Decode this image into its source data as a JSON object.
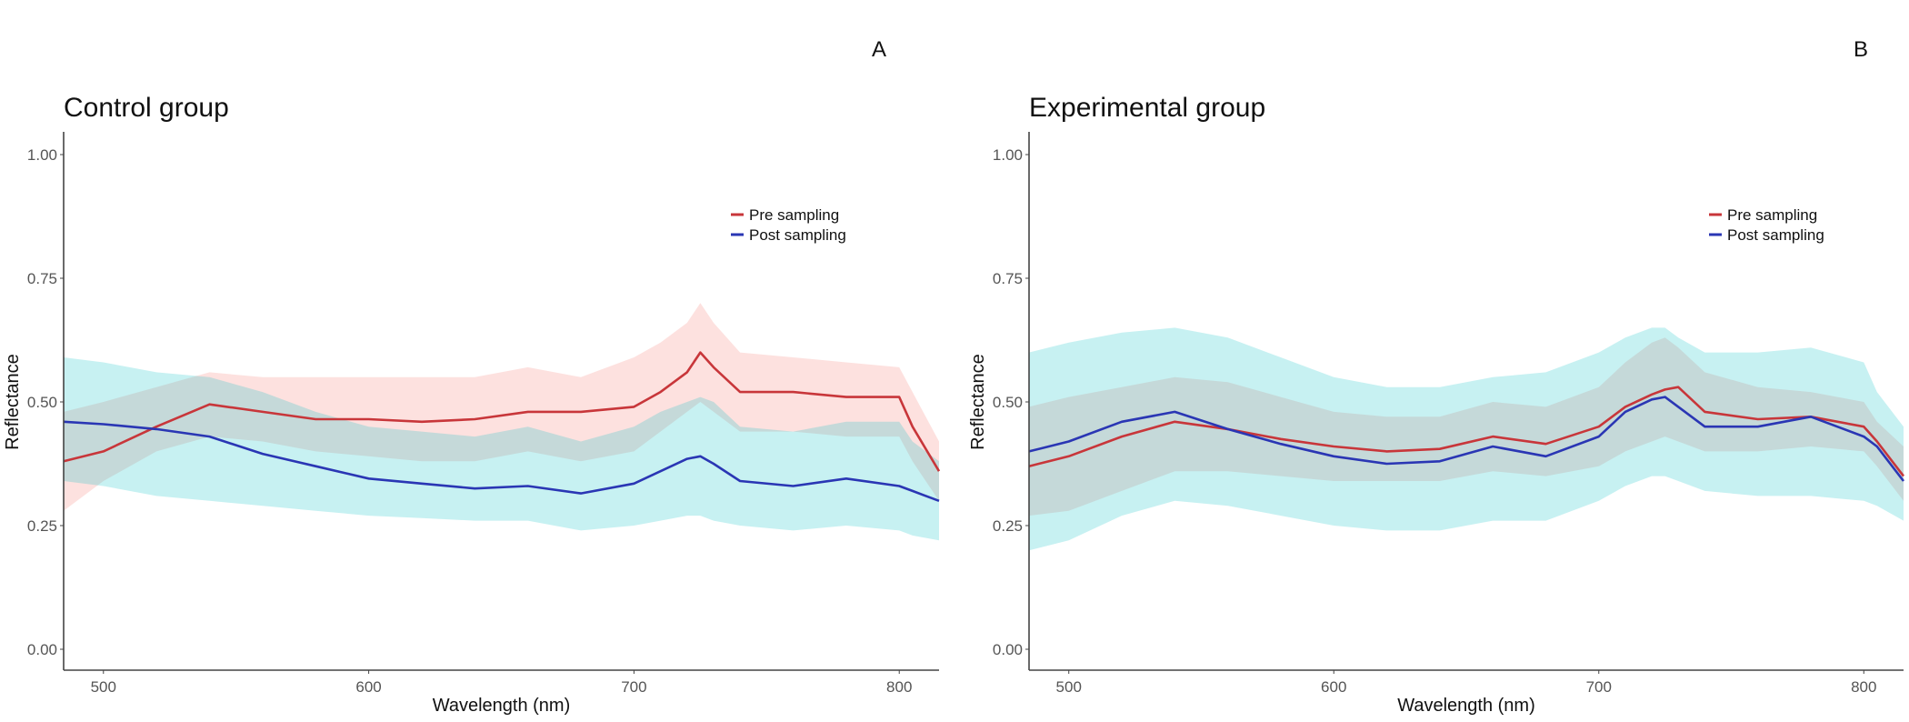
{
  "chart_data": [
    {
      "type": "line",
      "panel_letter": "A",
      "title": "Control group",
      "xlabel": "Wavelength (nm)",
      "ylabel": "Reflectance",
      "xlim": [
        485,
        815
      ],
      "ylim": [
        -0.04,
        1.04
      ],
      "xticks": [
        500,
        600,
        700,
        800
      ],
      "yticks": [
        0.0,
        0.25,
        0.5,
        0.75,
        1.0
      ],
      "ytick_labels": [
        "0.00",
        "0.25",
        "0.50",
        "0.75",
        "1.00"
      ],
      "legend_position": "top-right",
      "x": [
        485,
        500,
        520,
        540,
        560,
        580,
        600,
        620,
        640,
        660,
        680,
        700,
        710,
        720,
        725,
        730,
        740,
        760,
        780,
        800,
        805,
        815
      ],
      "series": [
        {
          "name": "Pre sampling",
          "color": "#c8363a",
          "band_color": "#F8766D",
          "mean": [
            0.38,
            0.4,
            0.45,
            0.495,
            0.48,
            0.465,
            0.465,
            0.46,
            0.465,
            0.48,
            0.48,
            0.49,
            0.52,
            0.56,
            0.6,
            0.57,
            0.52,
            0.52,
            0.51,
            0.51,
            0.45,
            0.36
          ],
          "lower": [
            0.28,
            0.34,
            0.4,
            0.43,
            0.42,
            0.4,
            0.39,
            0.38,
            0.38,
            0.4,
            0.38,
            0.4,
            0.44,
            0.48,
            0.5,
            0.48,
            0.44,
            0.44,
            0.43,
            0.43,
            0.38,
            0.3
          ],
          "upper": [
            0.48,
            0.5,
            0.53,
            0.56,
            0.55,
            0.55,
            0.55,
            0.55,
            0.55,
            0.57,
            0.55,
            0.59,
            0.62,
            0.66,
            0.7,
            0.66,
            0.6,
            0.59,
            0.58,
            0.57,
            0.52,
            0.42
          ]
        },
        {
          "name": "Post sampling",
          "color": "#2a36b4",
          "band_color": "#00BFC4",
          "mean": [
            0.46,
            0.455,
            0.445,
            0.43,
            0.395,
            0.37,
            0.345,
            0.335,
            0.325,
            0.33,
            0.315,
            0.335,
            0.36,
            0.385,
            0.39,
            0.375,
            0.34,
            0.33,
            0.345,
            0.33,
            0.32,
            0.3
          ],
          "lower": [
            0.34,
            0.33,
            0.31,
            0.3,
            0.29,
            0.28,
            0.27,
            0.265,
            0.26,
            0.26,
            0.24,
            0.25,
            0.26,
            0.27,
            0.27,
            0.26,
            0.25,
            0.24,
            0.25,
            0.24,
            0.23,
            0.22
          ],
          "upper": [
            0.59,
            0.58,
            0.56,
            0.55,
            0.52,
            0.48,
            0.45,
            0.44,
            0.43,
            0.45,
            0.42,
            0.45,
            0.48,
            0.5,
            0.51,
            0.5,
            0.45,
            0.44,
            0.46,
            0.46,
            0.42,
            0.38
          ]
        }
      ]
    },
    {
      "type": "line",
      "panel_letter": "B",
      "title": "Experimental group",
      "xlabel": "Wavelength (nm)",
      "ylabel": "Reflectance",
      "xlim": [
        485,
        815
      ],
      "ylim": [
        -0.04,
        1.04
      ],
      "xticks": [
        500,
        600,
        700,
        800
      ],
      "yticks": [
        0.0,
        0.25,
        0.5,
        0.75,
        1.0
      ],
      "ytick_labels": [
        "0.00",
        "0.25",
        "0.50",
        "0.75",
        "1.00"
      ],
      "legend_position": "top-right",
      "x": [
        485,
        500,
        520,
        540,
        560,
        580,
        600,
        620,
        640,
        660,
        680,
        700,
        710,
        720,
        725,
        730,
        740,
        760,
        780,
        800,
        805,
        815
      ],
      "series": [
        {
          "name": "Pre sampling",
          "color": "#c8363a",
          "band_color": "#F8766D",
          "mean": [
            0.37,
            0.39,
            0.43,
            0.46,
            0.445,
            0.425,
            0.41,
            0.4,
            0.405,
            0.43,
            0.415,
            0.45,
            0.49,
            0.515,
            0.525,
            0.53,
            0.48,
            0.465,
            0.47,
            0.45,
            0.42,
            0.35
          ],
          "lower": [
            0.27,
            0.28,
            0.32,
            0.36,
            0.36,
            0.35,
            0.34,
            0.34,
            0.34,
            0.36,
            0.35,
            0.37,
            0.4,
            0.42,
            0.43,
            0.42,
            0.4,
            0.4,
            0.41,
            0.4,
            0.37,
            0.3
          ],
          "upper": [
            0.49,
            0.51,
            0.53,
            0.55,
            0.54,
            0.51,
            0.48,
            0.47,
            0.47,
            0.5,
            0.49,
            0.53,
            0.58,
            0.62,
            0.63,
            0.61,
            0.56,
            0.53,
            0.52,
            0.5,
            0.46,
            0.41
          ]
        },
        {
          "name": "Post sampling",
          "color": "#2a36b4",
          "band_color": "#00BFC4",
          "mean": [
            0.4,
            0.42,
            0.46,
            0.48,
            0.445,
            0.415,
            0.39,
            0.375,
            0.38,
            0.41,
            0.39,
            0.43,
            0.48,
            0.505,
            0.51,
            0.49,
            0.45,
            0.45,
            0.47,
            0.43,
            0.41,
            0.34
          ],
          "lower": [
            0.2,
            0.22,
            0.27,
            0.3,
            0.29,
            0.27,
            0.25,
            0.24,
            0.24,
            0.26,
            0.26,
            0.3,
            0.33,
            0.35,
            0.35,
            0.34,
            0.32,
            0.31,
            0.31,
            0.3,
            0.29,
            0.26
          ],
          "upper": [
            0.6,
            0.62,
            0.64,
            0.65,
            0.63,
            0.59,
            0.55,
            0.53,
            0.53,
            0.55,
            0.56,
            0.6,
            0.63,
            0.65,
            0.65,
            0.63,
            0.6,
            0.6,
            0.61,
            0.58,
            0.52,
            0.45
          ]
        }
      ]
    }
  ]
}
